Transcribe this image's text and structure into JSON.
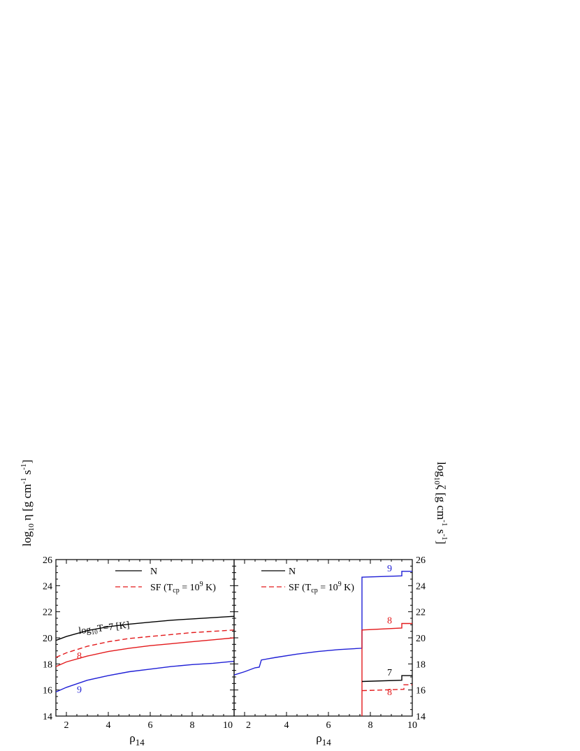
{
  "chart_data": [
    {
      "type": "line",
      "panel": "left",
      "xlabel": "ρ14",
      "ylabel": "log10 η [g cm^-1 s^-1]",
      "xlim": [
        1.5,
        10
      ],
      "ylim": [
        14,
        26
      ],
      "xticks": [
        "2",
        "4",
        "6",
        "8",
        "10"
      ],
      "yticks": [
        "14",
        "16",
        "18",
        "20",
        "22",
        "24",
        "26"
      ],
      "legend": [
        {
          "label": "N",
          "style": "solid",
          "color": "#000000"
        },
        {
          "label": "SF (Tcp = 10^9 K)",
          "style": "dashed",
          "color": "#e31a1c"
        }
      ],
      "legend_position": "top-center",
      "series": [
        {
          "style": "solid",
          "color": "#000000",
          "x": [
            1.5,
            2,
            3,
            4,
            5,
            6,
            7,
            8,
            9,
            10
          ],
          "y": [
            19.8,
            20.1,
            20.55,
            20.85,
            21.05,
            21.2,
            21.35,
            21.45,
            21.55,
            21.65
          ]
        },
        {
          "style": "dashed",
          "color": "#e31a1c",
          "x": [
            1.5,
            2,
            3,
            4,
            5,
            6,
            7,
            8,
            9,
            10
          ],
          "y": [
            18.5,
            18.85,
            19.35,
            19.7,
            19.95,
            20.1,
            20.25,
            20.4,
            20.5,
            20.6
          ]
        },
        {
          "style": "solid",
          "color": "#e31a1c",
          "x": [
            1.5,
            2,
            3,
            4,
            5,
            6,
            7,
            8,
            9,
            10
          ],
          "y": [
            17.8,
            18.15,
            18.6,
            18.95,
            19.2,
            19.4,
            19.55,
            19.7,
            19.85,
            20.0
          ]
        },
        {
          "style": "solid",
          "color": "#1f1fd6",
          "x": [
            1.5,
            2,
            3,
            4,
            5,
            6,
            7,
            8,
            9,
            10
          ],
          "y": [
            15.85,
            16.2,
            16.75,
            17.1,
            17.4,
            17.6,
            17.8,
            17.95,
            18.05,
            18.2
          ]
        }
      ],
      "annotations": [
        {
          "text_main": "log",
          "text_sub": "10",
          "text_rest": "T=7 [K]",
          "x": 2.6,
          "y": 20.3,
          "color": "#000000",
          "rotate": -7
        },
        {
          "text": "8",
          "x": 2.5,
          "y": 18.4,
          "color": "#e31a1c"
        },
        {
          "text": "9",
          "x": 2.5,
          "y": 15.8,
          "color": "#1f1fd6"
        }
      ]
    },
    {
      "type": "line",
      "panel": "right",
      "xlabel": "ρ14",
      "ylabel": "log10 ζ [g cm^-1 s^-1]",
      "xlim": [
        1.5,
        10
      ],
      "ylim": [
        14,
        26
      ],
      "xticks": [
        "2",
        "4",
        "6",
        "8",
        "10"
      ],
      "yticks": [
        "14",
        "16",
        "18",
        "20",
        "22",
        "24",
        "26"
      ],
      "legend": [
        {
          "label": "N",
          "style": "solid",
          "color": "#000000"
        },
        {
          "label": "SF (Tcp = 10^9 K)",
          "style": "dashed",
          "color": "#e31a1c"
        }
      ],
      "legend_position": "top-center",
      "series": [
        {
          "style": "solid",
          "color": "#1f1fd6",
          "x": [
            1.5,
            2.0,
            2.5,
            2.7,
            2.8,
            3.5,
            4.5,
            5.5,
            6.5,
            7.6,
            7.6,
            9.5,
            9.5,
            10.0
          ],
          "y": [
            17.15,
            17.4,
            17.7,
            17.75,
            18.3,
            18.5,
            18.75,
            18.95,
            19.1,
            19.2,
            24.65,
            24.75,
            25.1,
            25.1
          ]
        },
        {
          "style": "solid",
          "color": "#e31a1c",
          "x": [
            7.6,
            7.6,
            9.5,
            9.5,
            10.0
          ],
          "y": [
            14.0,
            20.6,
            20.75,
            21.1,
            21.1
          ]
        },
        {
          "style": "solid",
          "color": "#000000",
          "x": [
            7.6,
            9.5,
            9.5,
            10.0
          ],
          "y": [
            16.65,
            16.75,
            17.1,
            17.1
          ]
        },
        {
          "style": "dashed",
          "color": "#e31a1c",
          "x": [
            7.6,
            9.6,
            9.6,
            10.0
          ],
          "y": [
            15.95,
            16.05,
            16.4,
            16.4
          ]
        }
      ],
      "annotations": [
        {
          "text": "9",
          "x": 8.8,
          "y": 25.1,
          "color": "#1f1fd6"
        },
        {
          "text": "8",
          "x": 8.8,
          "y": 21.1,
          "color": "#e31a1c"
        },
        {
          "text": "7",
          "x": 8.8,
          "y": 17.1,
          "color": "#000000"
        },
        {
          "text": "8",
          "x": 8.8,
          "y": 15.6,
          "color": "#e31a1c"
        }
      ]
    }
  ],
  "labels": {
    "x_main": "ρ",
    "x_sub": "14",
    "legend_n": "N",
    "legend_sf_a": "SF (T",
    "legend_sf_sub": "cp",
    "legend_sf_b": " = 10",
    "legend_sf_sup": "9",
    "legend_sf_c": " K)",
    "yl_a": "log",
    "yl_sub": "10",
    "yl_b": " η [g cm",
    "yl_sup1": "-1",
    "yl_c": " s",
    "yl_sup2": "-1",
    "yl_d": "]",
    "yr_a": "log",
    "yr_sub": "10",
    "yr_b": "ζ [g cm",
    "yr_sup1": "-1",
    "yr_c": " s",
    "yr_sup2": "-1",
    "yr_d": "]"
  }
}
